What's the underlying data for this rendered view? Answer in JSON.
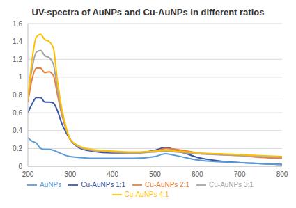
{
  "chart_data": {
    "type": "line",
    "title": "UV-spectra of AuNPs and Cu-AuNPs in different ratios",
    "x": [
      200,
      210,
      220,
      230,
      240,
      250,
      260,
      270,
      280,
      290,
      300,
      320,
      350,
      400,
      450,
      500,
      525,
      550,
      600,
      650,
      700,
      750,
      800
    ],
    "series": [
      {
        "name": "Cu-AuNPs 1:1",
        "color": "#3a56a5",
        "values": [
          0.6,
          0.7,
          0.77,
          0.77,
          0.72,
          0.72,
          0.71,
          0.62,
          0.48,
          0.38,
          0.3,
          0.21,
          0.17,
          0.15,
          0.15,
          0.18,
          0.21,
          0.18,
          0.1,
          0.06,
          0.04,
          0.03,
          0.02
        ]
      },
      {
        "name": "Cu-AuNPs 2:1",
        "color": "#ed7d31",
        "values": [
          0.72,
          0.98,
          1.1,
          1.1,
          1.05,
          1.06,
          1.02,
          0.8,
          0.58,
          0.42,
          0.3,
          0.22,
          0.18,
          0.16,
          0.15,
          0.17,
          0.2,
          0.19,
          0.15,
          0.13,
          0.12,
          0.1,
          0.09
        ]
      },
      {
        "name": "Cu-AuNPs 3:1",
        "color": "#a5a5a5",
        "values": [
          0.75,
          1.1,
          1.28,
          1.3,
          1.24,
          1.22,
          1.15,
          0.85,
          0.6,
          0.42,
          0.3,
          0.22,
          0.18,
          0.16,
          0.15,
          0.16,
          0.17,
          0.16,
          0.14,
          0.13,
          0.12,
          0.11,
          0.1
        ]
      },
      {
        "name": "Cu-AuNPs 4:1",
        "color": "#ffc000",
        "values": [
          0.75,
          1.2,
          1.45,
          1.48,
          1.42,
          1.4,
          1.33,
          0.95,
          0.65,
          0.44,
          0.3,
          0.23,
          0.19,
          0.17,
          0.16,
          0.17,
          0.18,
          0.17,
          0.15,
          0.14,
          0.13,
          0.12,
          0.11
        ]
      },
      {
        "name": "AuNPs",
        "color": "#5b9bd5",
        "values": [
          0.32,
          0.28,
          0.26,
          0.2,
          0.19,
          0.19,
          0.18,
          0.16,
          0.14,
          0.12,
          0.11,
          0.1,
          0.09,
          0.09,
          0.09,
          0.11,
          0.14,
          0.12,
          0.07,
          0.05,
          0.04,
          0.03,
          0.02
        ]
      }
    ],
    "xlim": [
      200,
      800
    ],
    "xticks": [
      200,
      300,
      400,
      500,
      600,
      700,
      800
    ],
    "ylim": [
      0,
      1.6
    ],
    "yticks": [
      0,
      0.2,
      0.4,
      0.6,
      0.8,
      1,
      1.2,
      1.4,
      1.6
    ],
    "grid": true,
    "legend": "bottom"
  }
}
